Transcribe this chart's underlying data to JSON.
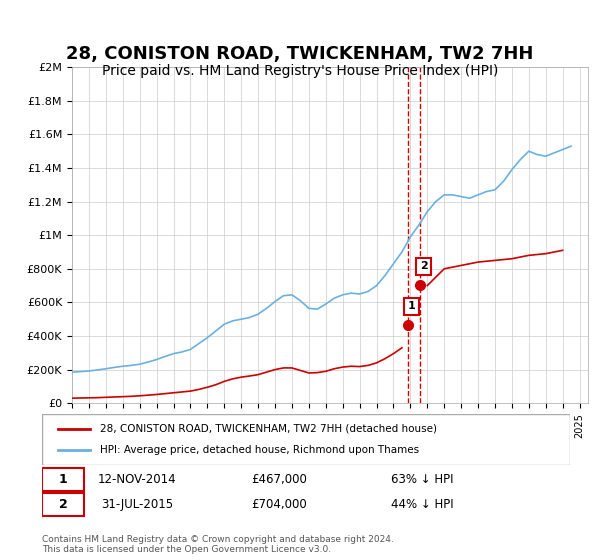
{
  "title": "28, CONISTON ROAD, TWICKENHAM, TW2 7HH",
  "subtitle": "Price paid vs. HM Land Registry's House Price Index (HPI)",
  "title_fontsize": 13,
  "subtitle_fontsize": 10,
  "background_color": "#ffffff",
  "plot_bg_color": "#ffffff",
  "grid_color": "#cccccc",
  "hpi_color": "#6ab0e0",
  "price_color": "#cc0000",
  "dashed_color": "#cc0000",
  "legend_label_red": "28, CONISTON ROAD, TWICKENHAM, TW2 7HH (detached house)",
  "legend_label_blue": "HPI: Average price, detached house, Richmond upon Thames",
  "purchase1_date": "12-NOV-2014",
  "purchase1_price": 467000,
  "purchase1_label": "63% ↓ HPI",
  "purchase1_year": 2014.87,
  "purchase2_date": "31-JUL-2015",
  "purchase2_price": 704000,
  "purchase2_label": "44% ↓ HPI",
  "purchase2_year": 2015.58,
  "xlabel": "",
  "ylabel": "",
  "ylim": [
    0,
    2000000
  ],
  "xlim": [
    1995,
    2025.5
  ],
  "footer": "Contains HM Land Registry data © Crown copyright and database right 2024.\nThis data is licensed under the Open Government Licence v3.0.",
  "hpi_data_x": [
    1995.0,
    1995.5,
    1996.0,
    1996.5,
    1997.0,
    1997.5,
    1998.0,
    1998.5,
    1999.0,
    1999.5,
    2000.0,
    2000.5,
    2001.0,
    2001.5,
    2002.0,
    2002.5,
    2003.0,
    2003.5,
    2004.0,
    2004.5,
    2005.0,
    2005.5,
    2006.0,
    2006.5,
    2007.0,
    2007.5,
    2008.0,
    2008.5,
    2009.0,
    2009.5,
    2010.0,
    2010.5,
    2011.0,
    2011.5,
    2012.0,
    2012.5,
    2013.0,
    2013.5,
    2014.0,
    2014.5,
    2015.0,
    2015.5,
    2016.0,
    2016.5,
    2017.0,
    2017.5,
    2018.0,
    2018.5,
    2019.0,
    2019.5,
    2020.0,
    2020.5,
    2021.0,
    2021.5,
    2022.0,
    2022.5,
    2023.0,
    2023.5,
    2024.0,
    2024.5
  ],
  "hpi_data_y": [
    185000,
    188000,
    192000,
    198000,
    205000,
    213000,
    220000,
    225000,
    232000,
    245000,
    260000,
    278000,
    295000,
    305000,
    320000,
    355000,
    390000,
    430000,
    470000,
    490000,
    500000,
    510000,
    530000,
    565000,
    605000,
    640000,
    645000,
    610000,
    565000,
    560000,
    590000,
    625000,
    645000,
    655000,
    650000,
    665000,
    700000,
    760000,
    830000,
    900000,
    990000,
    1060000,
    1140000,
    1200000,
    1240000,
    1240000,
    1230000,
    1220000,
    1240000,
    1260000,
    1270000,
    1320000,
    1390000,
    1450000,
    1500000,
    1480000,
    1470000,
    1490000,
    1510000,
    1530000
  ],
  "price_data_x": [
    1995.0,
    1995.5,
    1996.0,
    1996.5,
    1997.0,
    1997.5,
    1998.0,
    1998.5,
    1999.0,
    1999.5,
    2000.0,
    2000.5,
    2001.0,
    2001.5,
    2002.0,
    2002.5,
    2003.0,
    2003.5,
    2004.0,
    2004.5,
    2005.0,
    2005.5,
    2006.0,
    2006.5,
    2007.0,
    2007.5,
    2008.0,
    2008.5,
    2009.0,
    2009.5,
    2010.0,
    2010.5,
    2011.0,
    2011.5,
    2012.0,
    2012.5,
    2013.0,
    2013.5,
    2014.0,
    2014.5,
    2015.0,
    2016.0,
    2017.0,
    2018.0,
    2019.0,
    2020.0,
    2021.0,
    2022.0,
    2023.0,
    2024.0
  ],
  "price_data_y": [
    30000,
    31000,
    32000,
    33000,
    35000,
    37000,
    39000,
    41000,
    44000,
    48000,
    52000,
    57000,
    62000,
    67000,
    72000,
    82000,
    95000,
    110000,
    130000,
    145000,
    155000,
    162000,
    170000,
    185000,
    200000,
    210000,
    210000,
    195000,
    180000,
    182000,
    190000,
    205000,
    215000,
    220000,
    218000,
    225000,
    240000,
    265000,
    295000,
    330000,
    380000,
    700000,
    800000,
    820000,
    840000,
    850000,
    860000,
    880000,
    890000,
    910000
  ]
}
